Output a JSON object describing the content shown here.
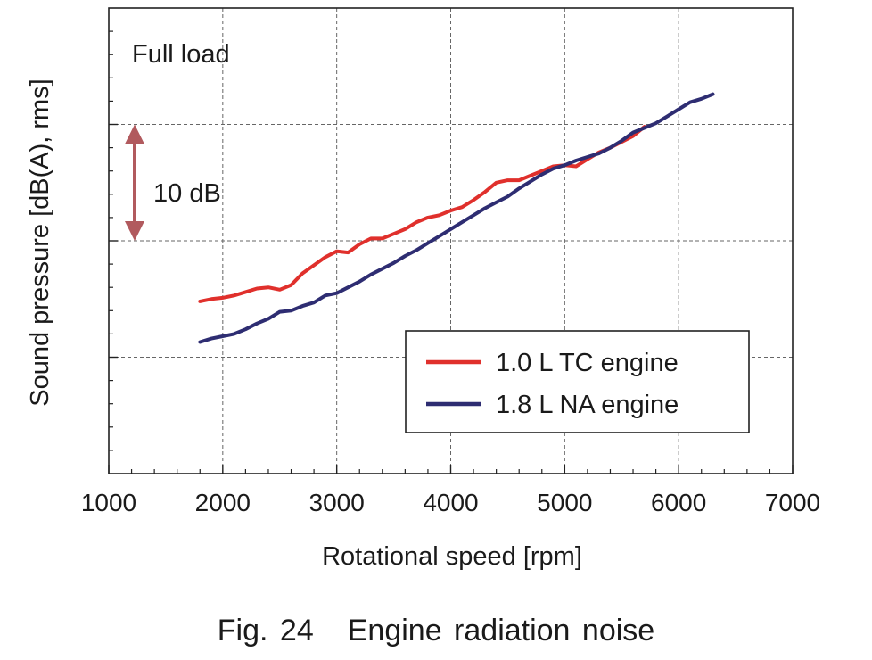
{
  "chart_data": {
    "type": "line",
    "title": "Engine radiation noise",
    "figure_label": "Fig. 24",
    "xlabel": "Rotational speed [rpm]",
    "ylabel": "Sound pressure [dB(A), rms]",
    "xlim": [
      1000,
      7000
    ],
    "xticks": [
      1000,
      2000,
      3000,
      4000,
      5000,
      6000,
      7000
    ],
    "ylim": [
      0,
      40
    ],
    "y_units": "dB relative (10 dB per major division, unlabeled)",
    "ymajor": [
      10,
      20,
      30
    ],
    "yminor_step": 2,
    "grid": true,
    "condition_label": "Full load",
    "scale_bar": {
      "label": "10 dB",
      "from": 20,
      "to": 30,
      "color": "#b15a5e"
    },
    "legend_position": "bottom-right",
    "series": [
      {
        "name": "1.0 L TC engine",
        "color": "#e0302c",
        "x": [
          1800,
          1900,
          2000,
          2100,
          2200,
          2300,
          2400,
          2500,
          2600,
          2700,
          2800,
          2900,
          3000,
          3100,
          3200,
          3300,
          3400,
          3500,
          3600,
          3700,
          3800,
          3900,
          4000,
          4100,
          4200,
          4300,
          4400,
          4500,
          4600,
          4700,
          4800,
          4900,
          5000,
          5100,
          5200,
          5300,
          5400,
          5500,
          5600,
          5700
        ],
        "values": [
          14.8,
          15.0,
          15.1,
          15.3,
          15.6,
          15.9,
          16.0,
          15.8,
          16.2,
          17.2,
          17.9,
          18.6,
          19.1,
          19.0,
          19.7,
          20.2,
          20.2,
          20.6,
          21.0,
          21.6,
          22.0,
          22.2,
          22.6,
          22.9,
          23.5,
          24.2,
          25.0,
          25.2,
          25.2,
          25.6,
          26.0,
          26.4,
          26.5,
          26.4,
          27.0,
          27.6,
          28.0,
          28.5,
          29.0,
          29.8
        ]
      },
      {
        "name": "1.8 L NA engine",
        "color": "#2e2d72",
        "x": [
          1800,
          1900,
          2000,
          2100,
          2200,
          2300,
          2400,
          2500,
          2600,
          2700,
          2800,
          2900,
          3000,
          3100,
          3200,
          3300,
          3400,
          3500,
          3600,
          3700,
          3800,
          3900,
          4000,
          4100,
          4200,
          4300,
          4400,
          4500,
          4600,
          4700,
          4800,
          4900,
          5000,
          5100,
          5200,
          5300,
          5400,
          5500,
          5600,
          5700,
          5800,
          5900,
          6000,
          6100,
          6200,
          6300
        ],
        "values": [
          11.3,
          11.6,
          11.8,
          12.0,
          12.4,
          12.9,
          13.3,
          13.9,
          14.0,
          14.4,
          14.7,
          15.3,
          15.5,
          16.0,
          16.5,
          17.1,
          17.6,
          18.1,
          18.7,
          19.2,
          19.8,
          20.4,
          21.0,
          21.6,
          22.2,
          22.8,
          23.3,
          23.8,
          24.5,
          25.1,
          25.7,
          26.2,
          26.5,
          26.9,
          27.2,
          27.5,
          28.0,
          28.6,
          29.3,
          29.7,
          30.1,
          30.7,
          31.3,
          31.9,
          32.2,
          32.6
        ]
      }
    ]
  }
}
